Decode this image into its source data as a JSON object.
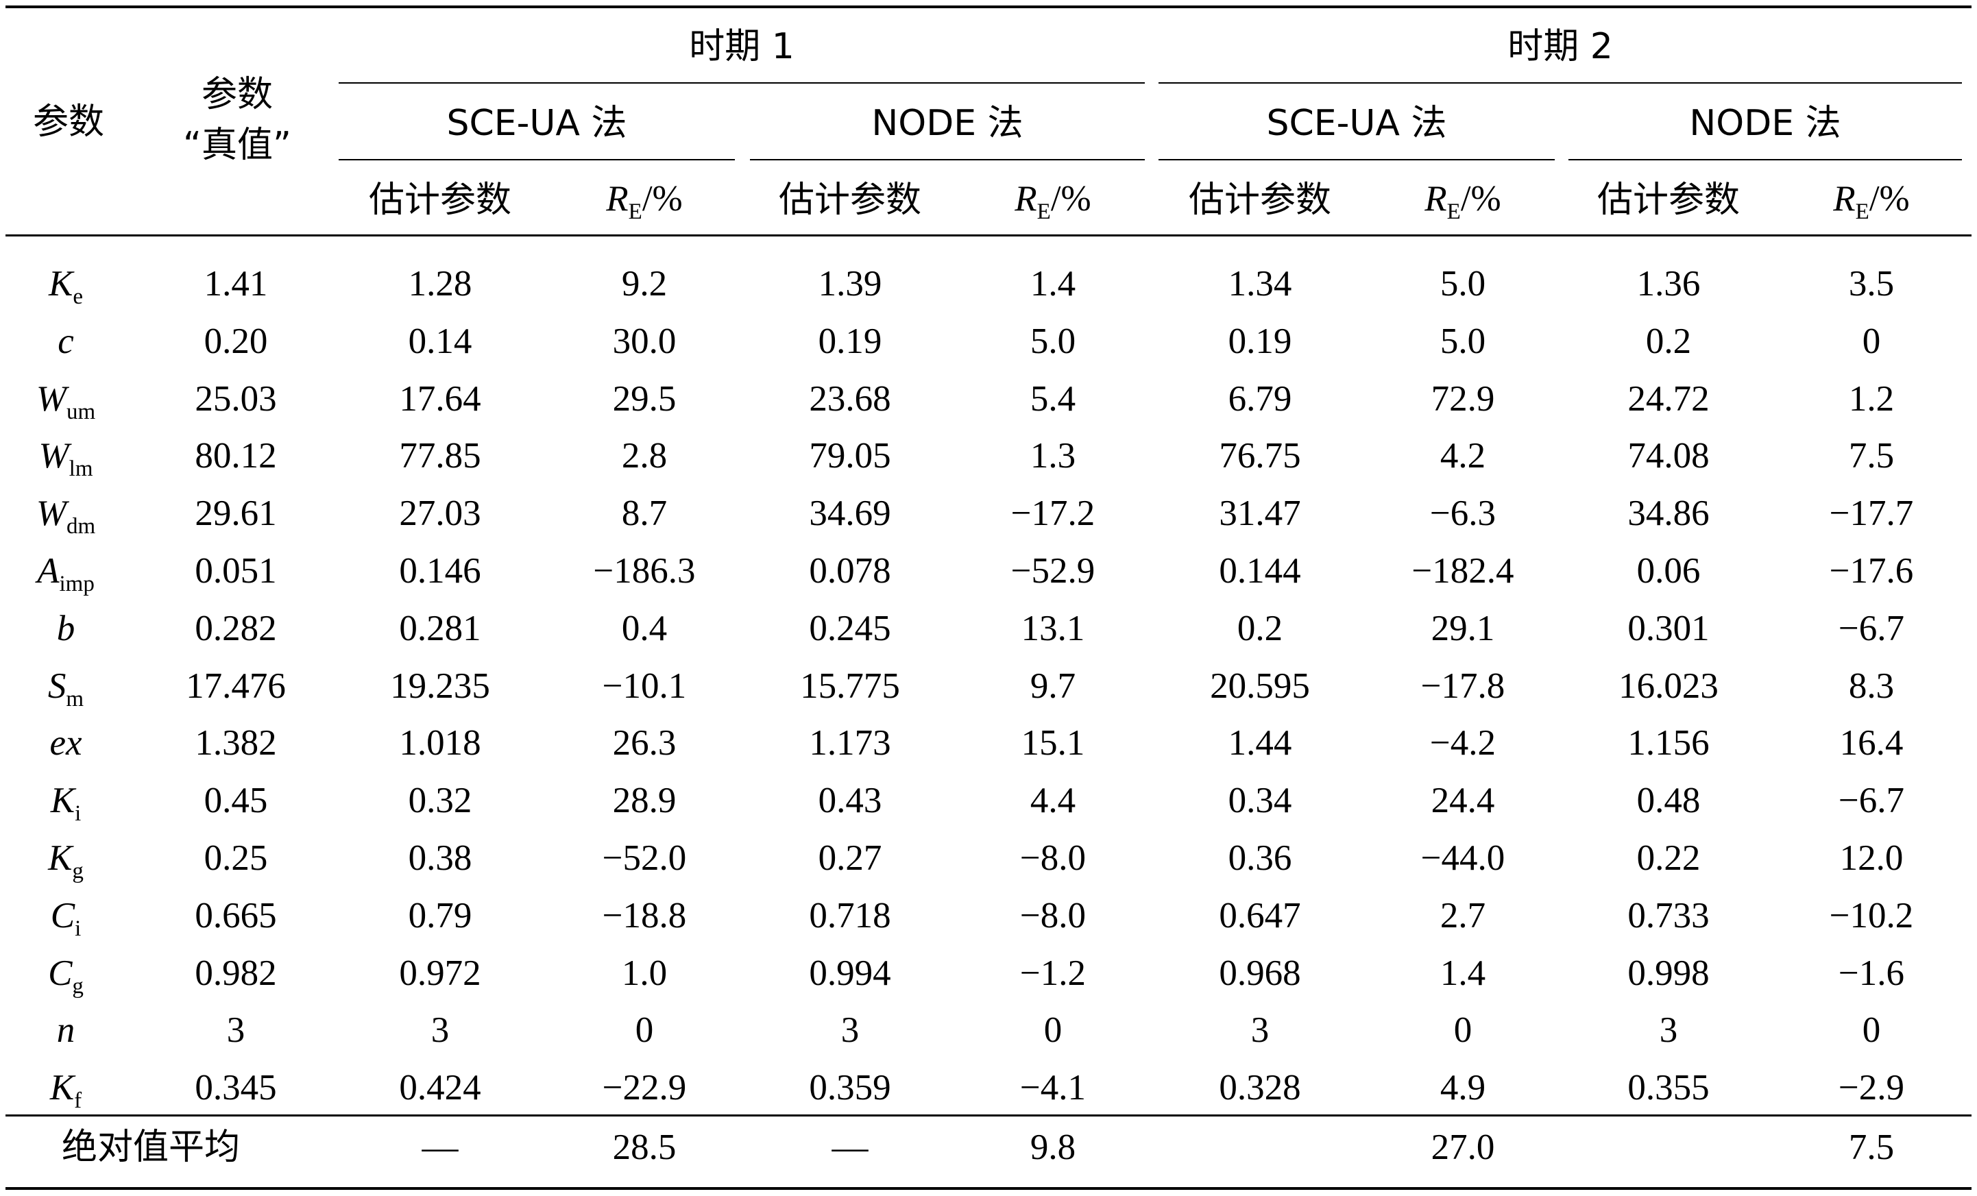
{
  "headers": {
    "param": "参数",
    "true_value_line1": "参数",
    "true_value_line2": "“真值”",
    "period1": "时期 1",
    "period2": "时期 2",
    "method_sceua": "SCE-UA 法",
    "method_node": "NODE 法",
    "est_param": "估计参数",
    "re_symbol": "R",
    "re_sub": "E",
    "re_unit": "/%"
  },
  "rows": [
    {
      "sym": "K",
      "sub": "e",
      "true": "1.41",
      "v": [
        "1.28",
        "9.2",
        "1.39",
        "1.4",
        "1.34",
        "5.0",
        "1.36",
        "3.5"
      ]
    },
    {
      "sym": "c",
      "sub": "",
      "true": "0.20",
      "v": [
        "0.14",
        "30.0",
        "0.19",
        "5.0",
        "0.19",
        "5.0",
        "0.2",
        "0"
      ]
    },
    {
      "sym": "W",
      "sub": "um",
      "true": "25.03",
      "v": [
        "17.64",
        "29.5",
        "23.68",
        "5.4",
        "6.79",
        "72.9",
        "24.72",
        "1.2"
      ]
    },
    {
      "sym": "W",
      "sub": "lm",
      "true": "80.12",
      "v": [
        "77.85",
        "2.8",
        "79.05",
        "1.3",
        "76.75",
        "4.2",
        "74.08",
        "7.5"
      ]
    },
    {
      "sym": "W",
      "sub": "dm",
      "true": "29.61",
      "v": [
        "27.03",
        "8.7",
        "34.69",
        "−17.2",
        "31.47",
        "−6.3",
        "34.86",
        "−17.7"
      ]
    },
    {
      "sym": "A",
      "sub": "imp",
      "true": "0.051",
      "v": [
        "0.146",
        "−186.3",
        "0.078",
        "−52.9",
        "0.144",
        "−182.4",
        "0.06",
        "−17.6"
      ]
    },
    {
      "sym": "b",
      "sub": "",
      "true": "0.282",
      "v": [
        "0.281",
        "0.4",
        "0.245",
        "13.1",
        "0.2",
        "29.1",
        "0.301",
        "−6.7"
      ]
    },
    {
      "sym": "S",
      "sub": "m",
      "true": "17.476",
      "v": [
        "19.235",
        "−10.1",
        "15.775",
        "9.7",
        "20.595",
        "−17.8",
        "16.023",
        "8.3"
      ]
    },
    {
      "sym": "ex",
      "sub": "",
      "true": "1.382",
      "v": [
        "1.018",
        "26.3",
        "1.173",
        "15.1",
        "1.44",
        "−4.2",
        "1.156",
        "16.4"
      ]
    },
    {
      "sym": "K",
      "sub": "i",
      "true": "0.45",
      "v": [
        "0.32",
        "28.9",
        "0.43",
        "4.4",
        "0.34",
        "24.4",
        "0.48",
        "−6.7"
      ]
    },
    {
      "sym": "K",
      "sub": "g",
      "true": "0.25",
      "v": [
        "0.38",
        "−52.0",
        "0.27",
        "−8.0",
        "0.36",
        "−44.0",
        "0.22",
        "12.0"
      ]
    },
    {
      "sym": "C",
      "sub": "i",
      "true": "0.665",
      "v": [
        "0.79",
        "−18.8",
        "0.718",
        "−8.0",
        "0.647",
        "2.7",
        "0.733",
        "−10.2"
      ]
    },
    {
      "sym": "C",
      "sub": "g",
      "true": "0.982",
      "v": [
        "0.972",
        "1.0",
        "0.994",
        "−1.2",
        "0.968",
        "1.4",
        "0.998",
        "−1.6"
      ]
    },
    {
      "sym": "n",
      "sub": "",
      "true": "3",
      "v": [
        "3",
        "0",
        "3",
        "0",
        "3",
        "0",
        "3",
        "0"
      ]
    },
    {
      "sym": "K",
      "sub": "f",
      "true": "0.345",
      "v": [
        "0.424",
        "−22.9",
        "0.359",
        "−4.1",
        "0.328",
        "4.9",
        "0.355",
        "−2.9"
      ]
    }
  ],
  "footer": {
    "label": "绝对值平均",
    "v": [
      "—",
      "28.5",
      "—",
      "9.8",
      "",
      "27.0",
      "",
      "7.5"
    ]
  }
}
